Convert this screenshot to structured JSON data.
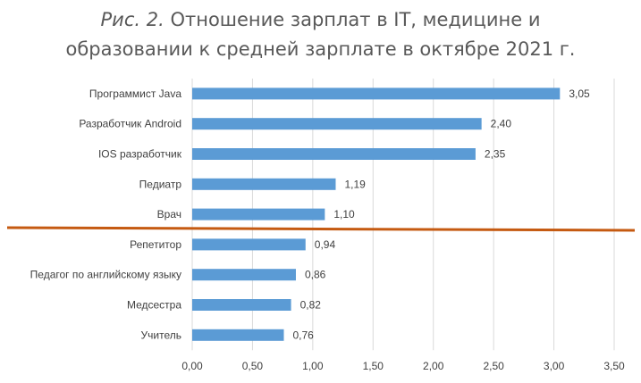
{
  "chart_data": {
    "type": "bar",
    "orientation": "horizontal",
    "title_prefix": "Рис. 2.",
    "title_line1": "Отношение зарплат в IT, медицине и",
    "title_line2": "образовании к средней зарплате в октябре 2021 г.",
    "categories": [
      "Программист Java",
      "Разработчик Android",
      "IOS разработчик",
      "Педиатр",
      "Врач",
      "Репетитор",
      "Педагог по английскому языку",
      "Медсестра",
      "Учитель"
    ],
    "values": [
      3.05,
      2.4,
      2.35,
      1.19,
      1.1,
      0.94,
      0.86,
      0.82,
      0.76
    ],
    "value_labels": [
      "3,05",
      "2,40",
      "2,35",
      "1,19",
      "1,10",
      "0,94",
      "0,86",
      "0,82",
      "0,76"
    ],
    "xticks": [
      "0,00",
      "0,50",
      "1,00",
      "1,50",
      "2,00",
      "2,50",
      "3,00",
      "3,50"
    ],
    "xlim": [
      0,
      3.5
    ],
    "grid": "vertical",
    "bar_color": "#5b9bd5",
    "divider_color": "#c55a11",
    "divider_after_category": "Врач"
  }
}
